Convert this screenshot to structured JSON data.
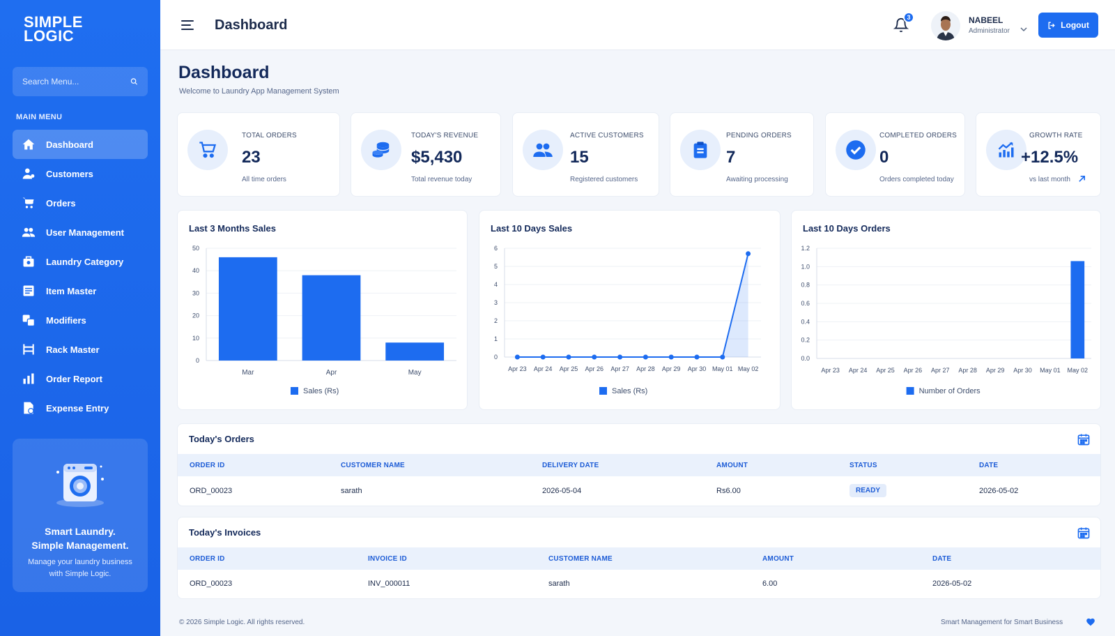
{
  "brand": {
    "line1": "SIMPLE",
    "line2": "LOGIC"
  },
  "sidebar": {
    "search_placeholder": "Search Menu...",
    "menu_title": "MAIN MENU",
    "items": [
      {
        "label": "Dashboard",
        "icon": "home-icon",
        "active": true
      },
      {
        "label": "Customers",
        "icon": "customers-icon"
      },
      {
        "label": "Orders",
        "icon": "cart-icon"
      },
      {
        "label": "User Management",
        "icon": "users-icon"
      },
      {
        "label": "Laundry Category",
        "icon": "category-icon"
      },
      {
        "label": "Item Master",
        "icon": "list-icon"
      },
      {
        "label": "Modifiers",
        "icon": "modifiers-icon"
      },
      {
        "label": "Rack Master",
        "icon": "rack-icon"
      },
      {
        "label": "Order Report",
        "icon": "report-icon"
      },
      {
        "label": "Expense Entry",
        "icon": "expense-icon"
      }
    ],
    "promo": {
      "title1": "Smart Laundry.",
      "title2": "Simple Management.",
      "sub": "Manage your laundry business with Simple Logic."
    }
  },
  "header": {
    "title": "Dashboard",
    "notifications": "3",
    "user_name": "NABEEL",
    "user_role": "Administrator",
    "logout": "Logout"
  },
  "page": {
    "title": "Dashboard",
    "subtitle": "Welcome to Laundry App Management System"
  },
  "stats": [
    {
      "label": "TOTAL ORDERS",
      "value": "23",
      "sub": "All time orders",
      "icon": "cart-icon"
    },
    {
      "label": "TODAY'S REVENUE",
      "value": "$5,430",
      "sub": "Total revenue today",
      "icon": "coins-icon"
    },
    {
      "label": "ACTIVE CUSTOMERS",
      "value": "15",
      "sub": "Registered customers",
      "icon": "users-icon"
    },
    {
      "label": "PENDING ORDERS",
      "value": "7",
      "sub": "Awaiting processing",
      "icon": "clipboard-icon"
    },
    {
      "label": "COMPLETED ORDERS",
      "value": "0",
      "sub": "Orders completed today",
      "icon": "check-icon"
    },
    {
      "label": "GROWTH RATE",
      "value": "+12.5%",
      "sub": "vs last month",
      "icon": "growth-icon"
    }
  ],
  "chart_data": [
    {
      "type": "bar",
      "title": "Last 3 Months Sales",
      "categories": [
        "Mar",
        "Apr",
        "May"
      ],
      "series": [
        {
          "name": "Sales (Rs)",
          "values": [
            46,
            38,
            8
          ]
        }
      ],
      "yticks": [
        0,
        10,
        20,
        30,
        40,
        50
      ],
      "ylim": [
        0,
        50
      ],
      "legend": "bottom",
      "color": "#1d6cf0"
    },
    {
      "type": "line",
      "title": "Last 10 Days Sales",
      "categories": [
        "Apr 23",
        "Apr 24",
        "Apr 25",
        "Apr 26",
        "Apr 27",
        "Apr 28",
        "Apr 29",
        "Apr 30",
        "May 01",
        "May 02"
      ],
      "series": [
        {
          "name": "Sales (Rs)",
          "values": [
            0,
            0,
            0,
            0,
            0,
            0,
            0,
            0,
            0,
            5.7
          ]
        }
      ],
      "yticks": [
        0,
        1,
        2,
        3,
        4,
        5,
        6
      ],
      "ylim": [
        0,
        6
      ],
      "legend": "bottom",
      "color": "#1d6cf0"
    },
    {
      "type": "bar",
      "title": "Last 10 Days Orders",
      "categories": [
        "Apr 23",
        "Apr 24",
        "Apr 25",
        "Apr 26",
        "Apr 27",
        "Apr 28",
        "Apr 29",
        "Apr 30",
        "May 01",
        "May 02"
      ],
      "series": [
        {
          "name": "Number of Orders",
          "values": [
            0,
            0,
            0,
            0,
            0,
            0,
            0,
            0,
            0,
            1.06
          ]
        }
      ],
      "yticks": [
        "0.0",
        "0.2",
        "0.4",
        "0.6",
        "0.8",
        "1.0",
        "1.2"
      ],
      "ylim": [
        0,
        1.2
      ],
      "legend": "bottom",
      "color": "#1d6cf0"
    }
  ],
  "orders_table": {
    "title": "Today's Orders",
    "columns": [
      "ORDER ID",
      "CUSTOMER NAME",
      "DELIVERY DATE",
      "AMOUNT",
      "STATUS",
      "DATE"
    ],
    "rows": [
      [
        "ORD_00023",
        "sarath",
        "2026-05-04",
        "Rs6.00",
        "READY",
        "2026-05-02"
      ]
    ]
  },
  "invoices_table": {
    "title": "Today's Invoices",
    "columns": [
      "ORDER ID",
      "INVOICE ID",
      "CUSTOMER NAME",
      "AMOUNT",
      "DATE"
    ],
    "rows": [
      [
        "ORD_00023",
        "INV_000011",
        "sarath",
        "6.00",
        "2026-05-02"
      ]
    ]
  },
  "footer": {
    "left": "© 2026 Simple Logic. All rights reserved.",
    "right": "Smart Management for Smart Business"
  }
}
